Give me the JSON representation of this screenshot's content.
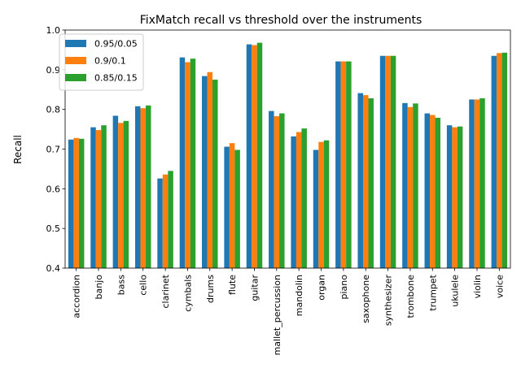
{
  "chart_data": {
    "type": "bar",
    "title": "FixMatch recall vs threshold over the instruments",
    "xlabel": "",
    "ylabel": "Recall",
    "ylim": [
      0.4,
      1.0
    ],
    "yticks": [
      "0.4",
      "0.5",
      "0.6",
      "0.7",
      "0.8",
      "0.9",
      "1.0"
    ],
    "ytick_values": [
      0.4,
      0.5,
      0.6,
      0.7,
      0.8,
      0.9,
      1.0
    ],
    "grid": false,
    "legend_position": "top-left",
    "categories": [
      "accordion",
      "banjo",
      "bass",
      "cello",
      "clarinet",
      "cymbals",
      "drums",
      "flute",
      "guitar",
      "mallet_percussion",
      "mandolin",
      "organ",
      "piano",
      "saxophone",
      "synthesizer",
      "trombone",
      "trumpet",
      "ukulele",
      "violin",
      "voice"
    ],
    "series": [
      {
        "name": "0.95/0.05",
        "color": "#1f77b4",
        "values": [
          0.724,
          0.755,
          0.784,
          0.808,
          0.626,
          0.931,
          0.884,
          0.706,
          0.964,
          0.796,
          0.732,
          0.698,
          0.921,
          0.841,
          0.935,
          0.816,
          0.79,
          0.76,
          0.825,
          0.935
        ]
      },
      {
        "name": "0.9/0.1",
        "color": "#ff7f0e",
        "values": [
          0.728,
          0.748,
          0.766,
          0.803,
          0.636,
          0.919,
          0.894,
          0.715,
          0.962,
          0.783,
          0.743,
          0.718,
          0.921,
          0.836,
          0.935,
          0.806,
          0.786,
          0.755,
          0.825,
          0.942
        ]
      },
      {
        "name": "0.85/0.15",
        "color": "#2ca02c",
        "values": [
          0.726,
          0.76,
          0.771,
          0.81,
          0.645,
          0.928,
          0.875,
          0.698,
          0.968,
          0.79,
          0.752,
          0.722,
          0.921,
          0.828,
          0.935,
          0.815,
          0.779,
          0.757,
          0.828,
          0.943
        ]
      }
    ]
  }
}
